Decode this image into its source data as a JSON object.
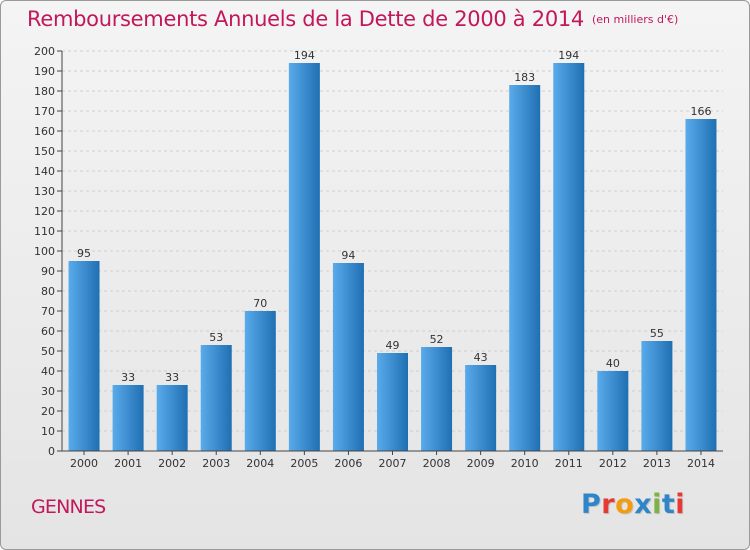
{
  "header": {
    "title": "Remboursements Annuels de la Dette de 2000 à 2014",
    "unit": "(en milliers d'€)"
  },
  "footer": {
    "commune": "GENNES",
    "logo_text": "Proxiti",
    "logo_colors": [
      "#2e86c9",
      "#e53935",
      "#f39c12",
      "#2e86c9",
      "#7cb342",
      "#2e86c9",
      "#e53935"
    ]
  },
  "colors": {
    "title": "#c2185b",
    "bar_light": "#5aabeb",
    "bar_dark": "#1f6fb3"
  },
  "chart_data": {
    "type": "bar",
    "title": "Remboursements Annuels de la Dette de 2000 à 2014",
    "xlabel": "",
    "ylabel": "",
    "categories": [
      "2000",
      "2001",
      "2002",
      "2003",
      "2004",
      "2005",
      "2006",
      "2007",
      "2008",
      "2009",
      "2010",
      "2011",
      "2012",
      "2013",
      "2014"
    ],
    "values": [
      95,
      33,
      33,
      53,
      70,
      194,
      94,
      49,
      52,
      43,
      183,
      194,
      40,
      55,
      166
    ],
    "ylim": [
      0,
      200
    ],
    "yticks": [
      0,
      10,
      20,
      30,
      40,
      50,
      60,
      70,
      80,
      90,
      100,
      110,
      120,
      130,
      140,
      150,
      160,
      170,
      180,
      190,
      200
    ],
    "grid": true,
    "data_labels": true
  }
}
